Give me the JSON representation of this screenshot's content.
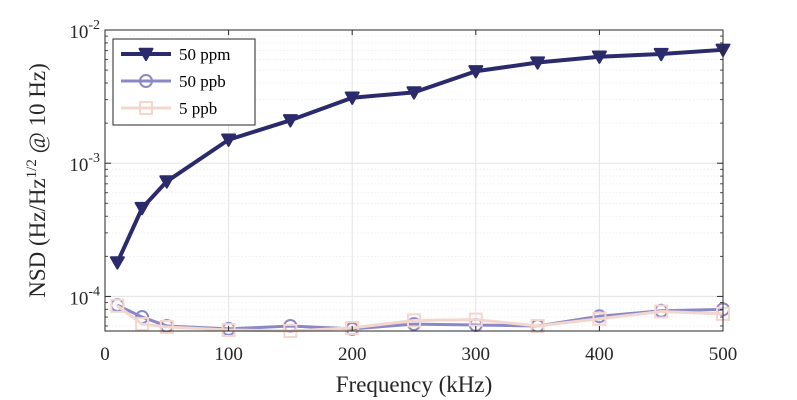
{
  "chart_data": {
    "type": "line",
    "title": "",
    "xlabel": "Frequency (kHz)",
    "ylabel": {
      "prefix": "NSD (Hz/Hz",
      "exponent": "1/2",
      "suffix": " @ 10 Hz)"
    },
    "xlim": [
      0,
      500
    ],
    "ylim": [
      5.5e-05,
      0.01
    ],
    "yscale": "log",
    "grid": true,
    "legend_position": "top-left",
    "x_ticks": [
      "0",
      "100",
      "200",
      "300",
      "400",
      "500"
    ],
    "y_ticks": [
      {
        "base": "10",
        "exp": "-4",
        "value": 0.0001
      },
      {
        "base": "10",
        "exp": "-3",
        "value": 0.001
      },
      {
        "base": "10",
        "exp": "-2",
        "value": 0.01
      }
    ],
    "x": [
      10,
      30,
      50,
      100,
      150,
      200,
      250,
      300,
      350,
      400,
      450,
      500
    ],
    "series": [
      {
        "name": "50 ppm",
        "color": "#2b2a6b",
        "marker": "triangle-down",
        "values": [
          0.00018,
          0.00046,
          0.00073,
          0.0015,
          0.0021,
          0.0031,
          0.0034,
          0.0049,
          0.0057,
          0.0063,
          0.0066,
          0.0071
        ]
      },
      {
        "name": "50 ppb",
        "color": "#8b88c6",
        "marker": "circle",
        "values": [
          8.6e-05,
          7e-05,
          6e-05,
          5.7e-05,
          6e-05,
          5.7e-05,
          6.2e-05,
          6.1e-05,
          6e-05,
          7.1e-05,
          7.8e-05,
          8e-05
        ]
      },
      {
        "name": "5 ppb",
        "color": "#f3d6ce",
        "marker": "square",
        "values": [
          8.5e-05,
          6.2e-05,
          5.9e-05,
          5.6e-05,
          5.5e-05,
          5.8e-05,
          6.6e-05,
          6.7e-05,
          6e-05,
          6.8e-05,
          7.7e-05,
          7.4e-05
        ]
      }
    ]
  }
}
